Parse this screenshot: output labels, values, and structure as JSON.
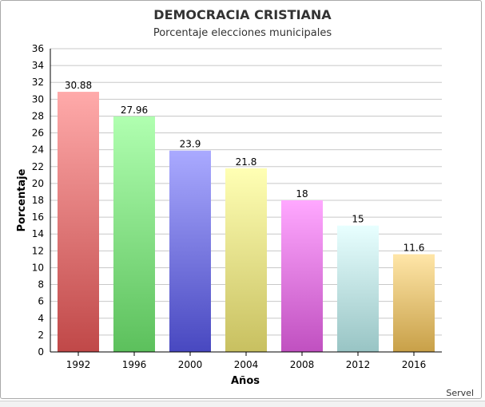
{
  "chart_data": {
    "type": "bar",
    "title": "DEMOCRACIA CRISTIANA",
    "subtitle": "Porcentaje elecciones municipales",
    "xlabel": "Años",
    "ylabel": "Porcentaje",
    "categories": [
      "1992",
      "1996",
      "2000",
      "2004",
      "2008",
      "2012",
      "2016"
    ],
    "values": [
      30.88,
      27.96,
      23.9,
      21.8,
      18,
      15,
      11.6
    ],
    "data_labels": [
      "30.88",
      "27.96",
      "23.9",
      "21.8",
      "18",
      "15",
      "11.6"
    ],
    "ylim": [
      0,
      36
    ],
    "yticks": [
      "0",
      "2",
      "4",
      "6",
      "8",
      "10",
      "12",
      "14",
      "16",
      "18",
      "20",
      "22",
      "24",
      "26",
      "28",
      "30",
      "32",
      "34",
      "36"
    ],
    "grid": true,
    "legend": false,
    "bar_colors": [
      [
        "#ffaaaa",
        "#c04848"
      ],
      [
        "#b0ffb0",
        "#5cc05c"
      ],
      [
        "#aaaaff",
        "#4848c0"
      ],
      [
        "#ffffb4",
        "#c8c060"
      ],
      [
        "#ffa8ff",
        "#c050c0"
      ],
      [
        "#e8ffff",
        "#98c4c4"
      ],
      [
        "#ffe6a8",
        "#c8a048"
      ]
    ]
  },
  "source": "Servel"
}
